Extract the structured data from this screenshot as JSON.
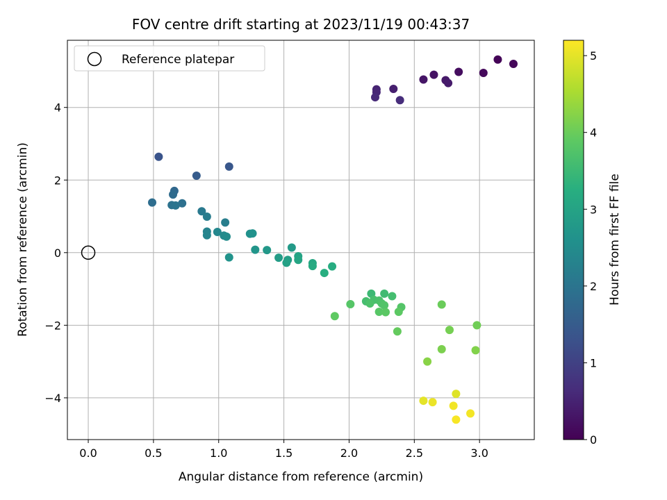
{
  "chart_data": {
    "type": "scatter",
    "title": "FOV centre drift starting at 2023/11/19 00:43:37",
    "xlabel": "Angular distance from reference (arcmin)",
    "ylabel": "Rotation from reference (arcmin)",
    "xlim": [
      -0.16,
      3.42
    ],
    "ylim": [
      -5.15,
      5.85
    ],
    "xticks": [
      0.0,
      0.5,
      1.0,
      1.5,
      2.0,
      2.5,
      3.0
    ],
    "xtick_labels": [
      "0.0",
      "0.5",
      "1.0",
      "1.5",
      "2.0",
      "2.5",
      "3.0"
    ],
    "yticks": [
      -4,
      -2,
      0,
      2,
      4
    ],
    "ytick_labels": [
      "−4",
      "−2",
      "0",
      "2",
      "4"
    ],
    "grid": true,
    "legend": {
      "placement": "top-left",
      "entries": [
        "Reference platepar"
      ]
    },
    "reference_point": {
      "x": 0.0,
      "y": 0.0
    },
    "colorbar": {
      "label": "Hours from first FF file",
      "range": [
        0,
        5.2
      ],
      "ticks": [
        0,
        1,
        2,
        3,
        4,
        5
      ],
      "tick_labels": [
        "0",
        "1",
        "2",
        "3",
        "4",
        "5"
      ],
      "colormap": "viridis"
    },
    "points": [
      {
        "x": 3.14,
        "y": 5.32,
        "c": 0.05
      },
      {
        "x": 3.26,
        "y": 5.2,
        "c": 0.08
      },
      {
        "x": 3.03,
        "y": 4.95,
        "c": 0.12
      },
      {
        "x": 2.84,
        "y": 4.98,
        "c": 0.18
      },
      {
        "x": 2.65,
        "y": 4.9,
        "c": 0.25
      },
      {
        "x": 2.57,
        "y": 4.77,
        "c": 0.3
      },
      {
        "x": 2.74,
        "y": 4.75,
        "c": 0.35
      },
      {
        "x": 2.76,
        "y": 4.67,
        "c": 0.38
      },
      {
        "x": 2.34,
        "y": 4.51,
        "c": 0.45
      },
      {
        "x": 2.21,
        "y": 4.5,
        "c": 0.5
      },
      {
        "x": 2.21,
        "y": 4.42,
        "c": 0.55
      },
      {
        "x": 2.2,
        "y": 4.28,
        "c": 0.6
      },
      {
        "x": 2.39,
        "y": 4.2,
        "c": 0.65
      },
      {
        "x": 0.54,
        "y": 2.64,
        "c": 1.35
      },
      {
        "x": 1.08,
        "y": 2.37,
        "c": 1.4
      },
      {
        "x": 0.83,
        "y": 2.12,
        "c": 1.5
      },
      {
        "x": 0.66,
        "y": 1.7,
        "c": 1.75
      },
      {
        "x": 0.65,
        "y": 1.6,
        "c": 1.8
      },
      {
        "x": 0.49,
        "y": 1.38,
        "c": 1.85
      },
      {
        "x": 0.72,
        "y": 1.36,
        "c": 1.9
      },
      {
        "x": 0.64,
        "y": 1.31,
        "c": 1.95
      },
      {
        "x": 0.67,
        "y": 1.3,
        "c": 2.0
      },
      {
        "x": 0.87,
        "y": 1.14,
        "c": 2.1
      },
      {
        "x": 0.91,
        "y": 0.99,
        "c": 2.15
      },
      {
        "x": 1.05,
        "y": 0.83,
        "c": 2.2
      },
      {
        "x": 0.91,
        "y": 0.58,
        "c": 2.3
      },
      {
        "x": 0.91,
        "y": 0.48,
        "c": 2.35
      },
      {
        "x": 0.99,
        "y": 0.57,
        "c": 2.4
      },
      {
        "x": 1.04,
        "y": 0.47,
        "c": 2.45
      },
      {
        "x": 1.06,
        "y": 0.44,
        "c": 2.5
      },
      {
        "x": 1.24,
        "y": 0.52,
        "c": 2.6
      },
      {
        "x": 1.26,
        "y": 0.53,
        "c": 2.62
      },
      {
        "x": 1.08,
        "y": -0.13,
        "c": 2.65
      },
      {
        "x": 1.28,
        "y": 0.08,
        "c": 2.7
      },
      {
        "x": 1.37,
        "y": 0.07,
        "c": 2.75
      },
      {
        "x": 1.56,
        "y": 0.14,
        "c": 2.8
      },
      {
        "x": 1.46,
        "y": -0.14,
        "c": 2.85
      },
      {
        "x": 1.53,
        "y": -0.2,
        "c": 2.9
      },
      {
        "x": 1.52,
        "y": -0.28,
        "c": 2.95
      },
      {
        "x": 1.61,
        "y": -0.1,
        "c": 3.0
      },
      {
        "x": 1.61,
        "y": -0.2,
        "c": 3.05
      },
      {
        "x": 1.72,
        "y": -0.29,
        "c": 3.1
      },
      {
        "x": 1.72,
        "y": -0.37,
        "c": 3.15
      },
      {
        "x": 1.87,
        "y": -0.38,
        "c": 3.2
      },
      {
        "x": 1.81,
        "y": -0.56,
        "c": 3.25
      },
      {
        "x": 2.17,
        "y": -1.13,
        "c": 3.5
      },
      {
        "x": 2.27,
        "y": -1.13,
        "c": 3.55
      },
      {
        "x": 2.33,
        "y": -1.2,
        "c": 3.6
      },
      {
        "x": 2.13,
        "y": -1.34,
        "c": 3.62
      },
      {
        "x": 2.19,
        "y": -1.3,
        "c": 3.65
      },
      {
        "x": 2.23,
        "y": -1.32,
        "c": 3.68
      },
      {
        "x": 2.16,
        "y": -1.4,
        "c": 3.7
      },
      {
        "x": 2.25,
        "y": -1.4,
        "c": 3.72
      },
      {
        "x": 2.27,
        "y": -1.45,
        "c": 3.75
      },
      {
        "x": 2.4,
        "y": -1.5,
        "c": 3.78
      },
      {
        "x": 2.01,
        "y": -1.42,
        "c": 3.8
      },
      {
        "x": 2.23,
        "y": -1.63,
        "c": 3.82
      },
      {
        "x": 2.28,
        "y": -1.64,
        "c": 3.85
      },
      {
        "x": 2.38,
        "y": -1.63,
        "c": 3.88
      },
      {
        "x": 1.89,
        "y": -1.75,
        "c": 3.9
      },
      {
        "x": 2.37,
        "y": -2.17,
        "c": 3.95
      },
      {
        "x": 2.71,
        "y": -1.43,
        "c": 4.0
      },
      {
        "x": 2.98,
        "y": -2.0,
        "c": 4.05
      },
      {
        "x": 2.77,
        "y": -2.13,
        "c": 4.1
      },
      {
        "x": 2.71,
        "y": -2.66,
        "c": 4.15
      },
      {
        "x": 2.97,
        "y": -2.69,
        "c": 4.2
      },
      {
        "x": 2.6,
        "y": -3.0,
        "c": 4.25
      },
      {
        "x": 2.82,
        "y": -3.89,
        "c": 4.95
      },
      {
        "x": 2.57,
        "y": -4.08,
        "c": 5.0
      },
      {
        "x": 2.64,
        "y": -4.12,
        "c": 5.05
      },
      {
        "x": 2.8,
        "y": -4.22,
        "c": 5.1
      },
      {
        "x": 2.93,
        "y": -4.43,
        "c": 5.12
      },
      {
        "x": 2.82,
        "y": -4.6,
        "c": 5.15
      }
    ]
  }
}
